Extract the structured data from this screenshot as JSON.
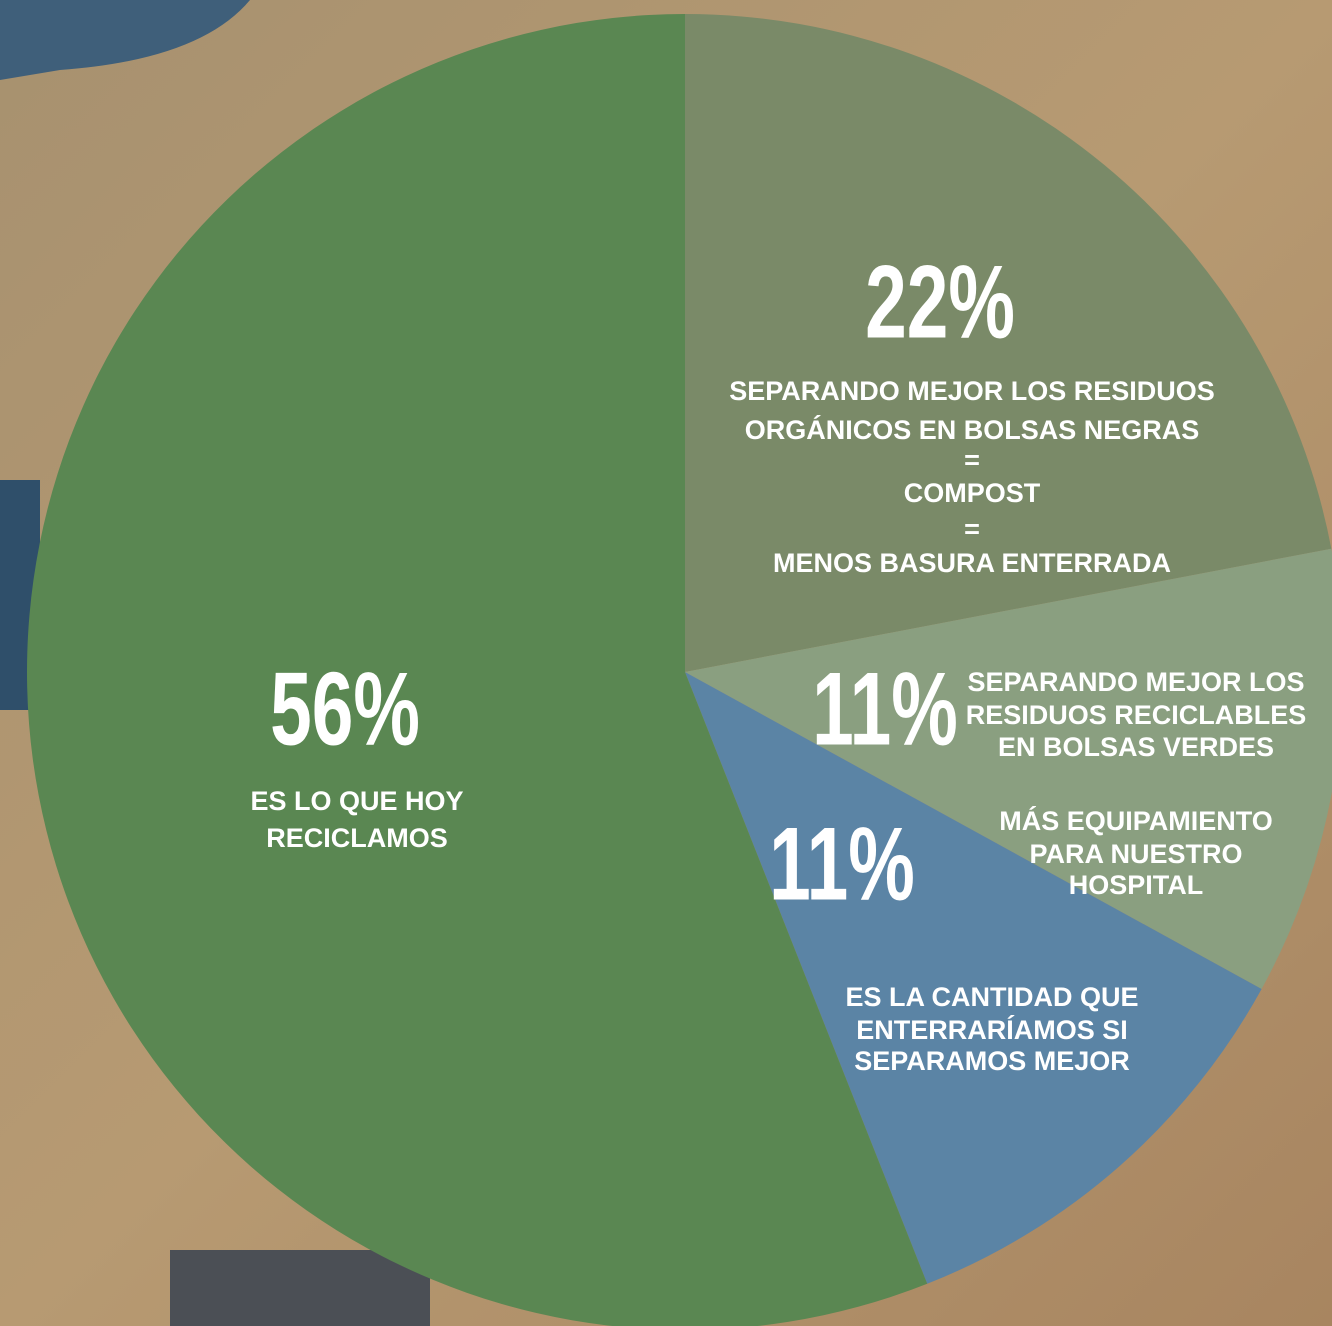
{
  "chart_data": {
    "type": "pie",
    "values": [
      22,
      11,
      11,
      56
    ],
    "value_labels": [
      "22%",
      "11%",
      "11%",
      "56%"
    ],
    "colors": [
      "#7a8a68",
      "#8a9f80",
      "#5b84a5",
      "#5a8752"
    ],
    "descriptions": [
      [
        "SEPARANDO MEJOR LOS RESIDUOS",
        "ORGÁNICOS EN BOLSAS NEGRAS",
        "=",
        "COMPOST",
        "=",
        "MENOS BASURA ENTERRADA"
      ],
      [
        "SEPARANDO MEJOR LOS",
        "RESIDUOS RECICLABLES",
        "EN BOLSAS VERDES",
        "MÁS EQUIPAMIENTO",
        "PARA NUESTRO",
        "HOSPITAL"
      ],
      [
        "ES LA CANTIDAD QUE",
        "ENTERRARÍAMOS SI",
        "SEPARAMOS MEJOR"
      ],
      [
        "ES LO QUE HOY",
        "RECICLAMOS"
      ]
    ]
  }
}
